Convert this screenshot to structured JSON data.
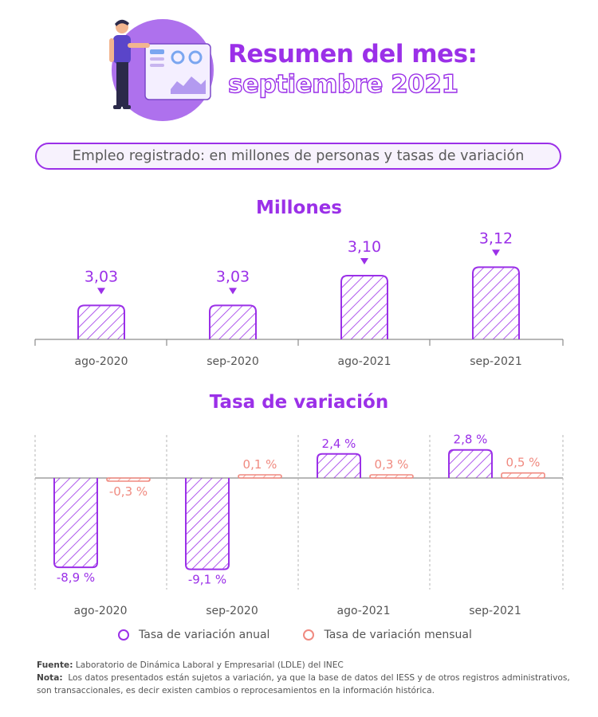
{
  "header": {
    "title_line1": "Resumen del mes:",
    "title_line2": "septiembre 2021",
    "subtitle": "Empleo registrado: en millones de personas y tasas de variación"
  },
  "colors": {
    "purple": "#9b30e8",
    "coral": "#f08a80",
    "axis": "#8c8c8c"
  },
  "chart_data": [
    {
      "type": "bar",
      "title": "Millones",
      "categories": [
        "ago-2020",
        "sep-2020",
        "ago-2021",
        "sep-2021"
      ],
      "values": [
        3.03,
        3.03,
        3.1,
        3.12
      ],
      "labels": [
        "3,03",
        "3,03",
        "3,10",
        "3,12"
      ],
      "ylim": [
        2.95,
        3.13
      ],
      "grid": false,
      "legend": "none"
    },
    {
      "type": "bar",
      "title": "Tasa de variación",
      "categories": [
        "ago-2020",
        "sep-2020",
        "ago-2021",
        "sep-2021"
      ],
      "series": [
        {
          "name": "Tasa de variación anual",
          "values": [
            -8.9,
            -9.1,
            2.4,
            2.8
          ],
          "labels": [
            "-8,9 %",
            "-9,1 %",
            "2,4 %",
            "2,8 %"
          ]
        },
        {
          "name": "Tasa de variación mensual",
          "values": [
            -0.3,
            0.1,
            0.3,
            0.5
          ],
          "labels": [
            "-0,3 %",
            "0,1 %",
            "0,3 %",
            "0,5 %"
          ]
        }
      ],
      "grid": false,
      "legend": "bottom"
    }
  ],
  "legend": {
    "annual": "Tasa de variación anual",
    "monthly": "Tasa de variación mensual"
  },
  "notes": {
    "source_label": "Fuente:",
    "source_text": "Laboratorio de Dinámica Laboral y Empresarial (LDLE) del INEC",
    "note_label": "Nota:",
    "note_text": "Los datos presentados están sujetos a variación, ya que la base de datos del IESS y de otros registros administrativos, son transaccionales, es decir existen cambios o reprocesamientos en la información histórica."
  }
}
